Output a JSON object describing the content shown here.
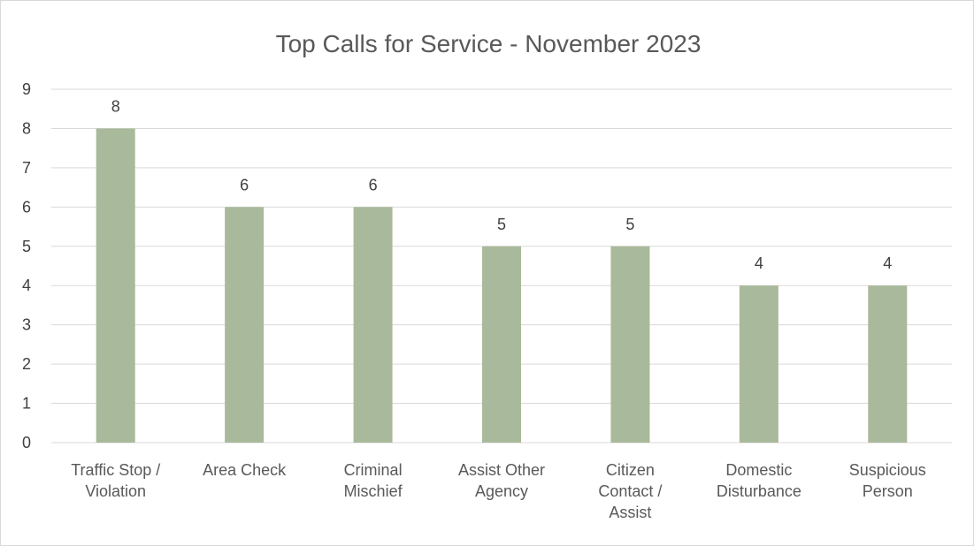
{
  "chart_data": {
    "type": "bar",
    "title": "Top Calls for Service - November 2023",
    "categories": [
      [
        "Traffic Stop /",
        "Violation"
      ],
      [
        "Area Check"
      ],
      [
        "Criminal",
        "Mischief"
      ],
      [
        "Assist Other",
        "Agency"
      ],
      [
        "Citizen",
        "Contact /",
        "Assist"
      ],
      [
        "Domestic",
        "Disturbance"
      ],
      [
        "Suspicious",
        "Person"
      ]
    ],
    "values": [
      8,
      6,
      6,
      5,
      5,
      4,
      4
    ],
    "ylim": [
      0,
      9
    ],
    "yticks": [
      "0",
      "1",
      "2",
      "3",
      "4",
      "5",
      "6",
      "7",
      "8",
      "9"
    ],
    "grid": true,
    "bar_color": "#a9b99b",
    "data_labels": true
  }
}
